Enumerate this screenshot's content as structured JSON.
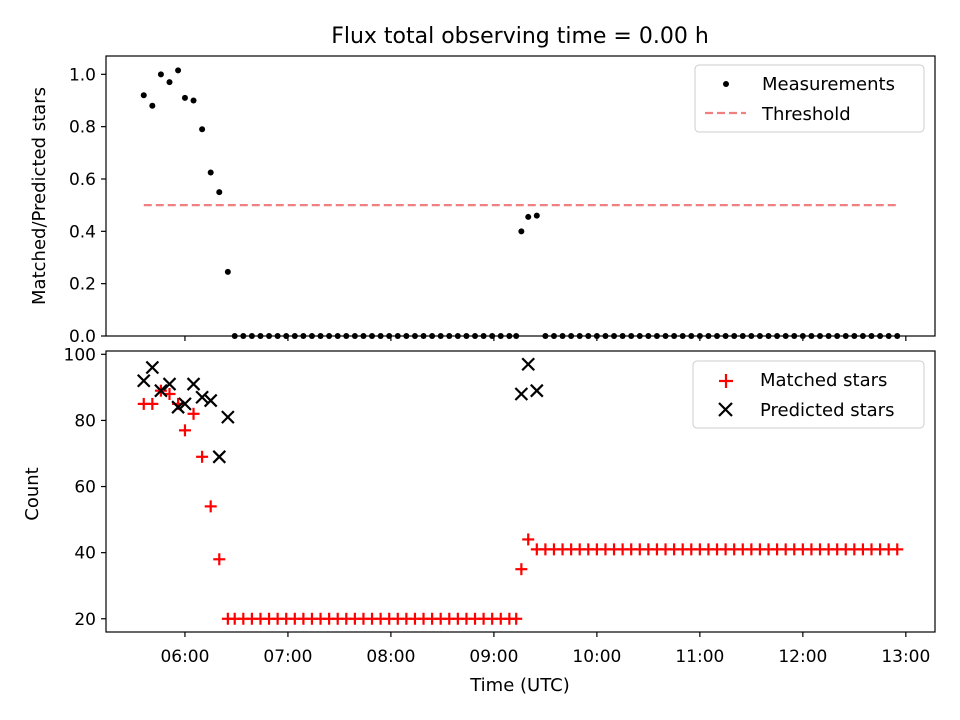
{
  "title": "Flux total observing time = 0.00 h",
  "chart_data": [
    {
      "type": "scatter",
      "ylabel": "Matched/Predicted stars",
      "ylim": [
        0,
        1.07
      ],
      "xlim": [
        "05:14",
        "13:17"
      ],
      "yticks": [
        "0.0",
        "0.2",
        "0.4",
        "0.6",
        "0.8",
        "1.0"
      ],
      "legend": "top-right",
      "series": [
        {
          "name": "Measurements",
          "marker": "dot",
          "color": "#000000",
          "values": [
            [
              "05:36",
              0.92
            ],
            [
              "05:41",
              0.88
            ],
            [
              "05:46",
              1.0
            ],
            [
              "05:51",
              0.97
            ],
            [
              "05:56",
              1.015
            ],
            [
              "06:00",
              0.91
            ],
            [
              "06:05",
              0.9
            ],
            [
              "06:10",
              0.79
            ],
            [
              "06:15",
              0.625
            ],
            [
              "06:20",
              0.55
            ],
            [
              "06:25",
              0.245
            ],
            [
              "06:29",
              0.0
            ],
            [
              "06:34",
              0.0
            ],
            [
              "06:39",
              0.0
            ],
            [
              "06:44",
              0.0
            ],
            [
              "06:49",
              0.0
            ],
            [
              "06:54",
              0.0
            ],
            [
              "06:59",
              0.0
            ],
            [
              "07:04",
              0.0
            ],
            [
              "07:09",
              0.0
            ],
            [
              "07:14",
              0.0
            ],
            [
              "07:19",
              0.0
            ],
            [
              "07:24",
              0.0
            ],
            [
              "07:29",
              0.0
            ],
            [
              "07:34",
              0.0
            ],
            [
              "07:39",
              0.0
            ],
            [
              "07:44",
              0.0
            ],
            [
              "07:49",
              0.0
            ],
            [
              "07:54",
              0.0
            ],
            [
              "07:59",
              0.0
            ],
            [
              "08:04",
              0.0
            ],
            [
              "08:09",
              0.0
            ],
            [
              "08:14",
              0.0
            ],
            [
              "08:19",
              0.0
            ],
            [
              "08:24",
              0.0
            ],
            [
              "08:29",
              0.0
            ],
            [
              "08:34",
              0.0
            ],
            [
              "08:39",
              0.0
            ],
            [
              "08:44",
              0.0
            ],
            [
              "08:49",
              0.0
            ],
            [
              "08:54",
              0.0
            ],
            [
              "08:59",
              0.0
            ],
            [
              "09:04",
              0.0
            ],
            [
              "09:09",
              0.0
            ],
            [
              "09:13",
              0.0
            ],
            [
              "09:16",
              0.4
            ],
            [
              "09:20",
              0.455
            ],
            [
              "09:25",
              0.46
            ],
            [
              "09:30",
              0.0
            ],
            [
              "09:35",
              0.0
            ],
            [
              "09:40",
              0.0
            ],
            [
              "09:45",
              0.0
            ],
            [
              "09:50",
              0.0
            ],
            [
              "09:55",
              0.0
            ],
            [
              "10:00",
              0.0
            ],
            [
              "10:05",
              0.0
            ],
            [
              "10:10",
              0.0
            ],
            [
              "10:15",
              0.0
            ],
            [
              "10:20",
              0.0
            ],
            [
              "10:25",
              0.0
            ],
            [
              "10:30",
              0.0
            ],
            [
              "10:35",
              0.0
            ],
            [
              "10:40",
              0.0
            ],
            [
              "10:45",
              0.0
            ],
            [
              "10:50",
              0.0
            ],
            [
              "10:55",
              0.0
            ],
            [
              "11:00",
              0.0
            ],
            [
              "11:05",
              0.0
            ],
            [
              "11:10",
              0.0
            ],
            [
              "11:15",
              0.0
            ],
            [
              "11:20",
              0.0
            ],
            [
              "11:25",
              0.0
            ],
            [
              "11:30",
              0.0
            ],
            [
              "11:35",
              0.0
            ],
            [
              "11:40",
              0.0
            ],
            [
              "11:45",
              0.0
            ],
            [
              "11:50",
              0.0
            ],
            [
              "11:55",
              0.0
            ],
            [
              "12:00",
              0.0
            ],
            [
              "12:05",
              0.0
            ],
            [
              "12:10",
              0.0
            ],
            [
              "12:15",
              0.0
            ],
            [
              "12:20",
              0.0
            ],
            [
              "12:25",
              0.0
            ],
            [
              "12:30",
              0.0
            ],
            [
              "12:35",
              0.0
            ],
            [
              "12:40",
              0.0
            ],
            [
              "12:45",
              0.0
            ],
            [
              "12:50",
              0.0
            ],
            [
              "12:55",
              0.0
            ]
          ]
        },
        {
          "name": "Threshold",
          "style": "dashed",
          "color": "#f08080",
          "x": [
            "05:36",
            "12:55"
          ],
          "y": 0.5
        }
      ]
    },
    {
      "type": "scatter",
      "xlabel": "Time (UTC)",
      "ylabel": "Count",
      "ylim": [
        16,
        101
      ],
      "xlim": [
        "05:14",
        "13:17"
      ],
      "yticks": [
        "20",
        "40",
        "60",
        "80",
        "100"
      ],
      "xticks": [
        "06:00",
        "07:00",
        "08:00",
        "09:00",
        "10:00",
        "11:00",
        "12:00",
        "13:00"
      ],
      "legend": "top-right",
      "series": [
        {
          "name": "Matched stars",
          "marker": "plus",
          "color": "#ff0000",
          "values": [
            [
              "05:36",
              85
            ],
            [
              "05:41",
              85
            ],
            [
              "05:46",
              89
            ],
            [
              "05:51",
              88
            ],
            [
              "05:56",
              85
            ],
            [
              "06:00",
              77
            ],
            [
              "06:05",
              82
            ],
            [
              "06:10",
              69
            ],
            [
              "06:15",
              54
            ],
            [
              "06:20",
              38
            ],
            [
              "06:25",
              20
            ],
            [
              "06:29",
              20
            ],
            [
              "06:34",
              20
            ],
            [
              "06:39",
              20
            ],
            [
              "06:44",
              20
            ],
            [
              "06:49",
              20
            ],
            [
              "06:54",
              20
            ],
            [
              "06:59",
              20
            ],
            [
              "07:04",
              20
            ],
            [
              "07:09",
              20
            ],
            [
              "07:14",
              20
            ],
            [
              "07:19",
              20
            ],
            [
              "07:24",
              20
            ],
            [
              "07:29",
              20
            ],
            [
              "07:34",
              20
            ],
            [
              "07:39",
              20
            ],
            [
              "07:44",
              20
            ],
            [
              "07:49",
              20
            ],
            [
              "07:54",
              20
            ],
            [
              "07:59",
              20
            ],
            [
              "08:04",
              20
            ],
            [
              "08:09",
              20
            ],
            [
              "08:14",
              20
            ],
            [
              "08:19",
              20
            ],
            [
              "08:24",
              20
            ],
            [
              "08:29",
              20
            ],
            [
              "08:34",
              20
            ],
            [
              "08:39",
              20
            ],
            [
              "08:44",
              20
            ],
            [
              "08:49",
              20
            ],
            [
              "08:54",
              20
            ],
            [
              "08:59",
              20
            ],
            [
              "09:04",
              20
            ],
            [
              "09:09",
              20
            ],
            [
              "09:13",
              20
            ],
            [
              "09:16",
              35
            ],
            [
              "09:20",
              44
            ],
            [
              "09:25",
              41
            ],
            [
              "09:30",
              41
            ],
            [
              "09:35",
              41
            ],
            [
              "09:40",
              41
            ],
            [
              "09:45",
              41
            ],
            [
              "09:50",
              41
            ],
            [
              "09:55",
              41
            ],
            [
              "10:00",
              41
            ],
            [
              "10:05",
              41
            ],
            [
              "10:10",
              41
            ],
            [
              "10:15",
              41
            ],
            [
              "10:20",
              41
            ],
            [
              "10:25",
              41
            ],
            [
              "10:30",
              41
            ],
            [
              "10:35",
              41
            ],
            [
              "10:40",
              41
            ],
            [
              "10:45",
              41
            ],
            [
              "10:50",
              41
            ],
            [
              "10:55",
              41
            ],
            [
              "11:00",
              41
            ],
            [
              "11:05",
              41
            ],
            [
              "11:10",
              41
            ],
            [
              "11:15",
              41
            ],
            [
              "11:20",
              41
            ],
            [
              "11:25",
              41
            ],
            [
              "11:30",
              41
            ],
            [
              "11:35",
              41
            ],
            [
              "11:40",
              41
            ],
            [
              "11:45",
              41
            ],
            [
              "11:50",
              41
            ],
            [
              "11:55",
              41
            ],
            [
              "12:00",
              41
            ],
            [
              "12:05",
              41
            ],
            [
              "12:10",
              41
            ],
            [
              "12:15",
              41
            ],
            [
              "12:20",
              41
            ],
            [
              "12:25",
              41
            ],
            [
              "12:30",
              41
            ],
            [
              "12:35",
              41
            ],
            [
              "12:40",
              41
            ],
            [
              "12:45",
              41
            ],
            [
              "12:50",
              41
            ],
            [
              "12:55",
              41
            ]
          ]
        },
        {
          "name": "Predicted stars",
          "marker": "x",
          "color": "#000000",
          "values": [
            [
              "05:36",
              92
            ],
            [
              "05:41",
              96
            ],
            [
              "05:46",
              89
            ],
            [
              "05:51",
              91
            ],
            [
              "05:56",
              84
            ],
            [
              "06:00",
              85
            ],
            [
              "06:05",
              91
            ],
            [
              "06:10",
              87
            ],
            [
              "06:15",
              86
            ],
            [
              "06:20",
              69
            ],
            [
              "06:25",
              81
            ],
            [
              "09:16",
              88
            ],
            [
              "09:20",
              97
            ],
            [
              "09:25",
              89
            ]
          ]
        }
      ]
    }
  ]
}
